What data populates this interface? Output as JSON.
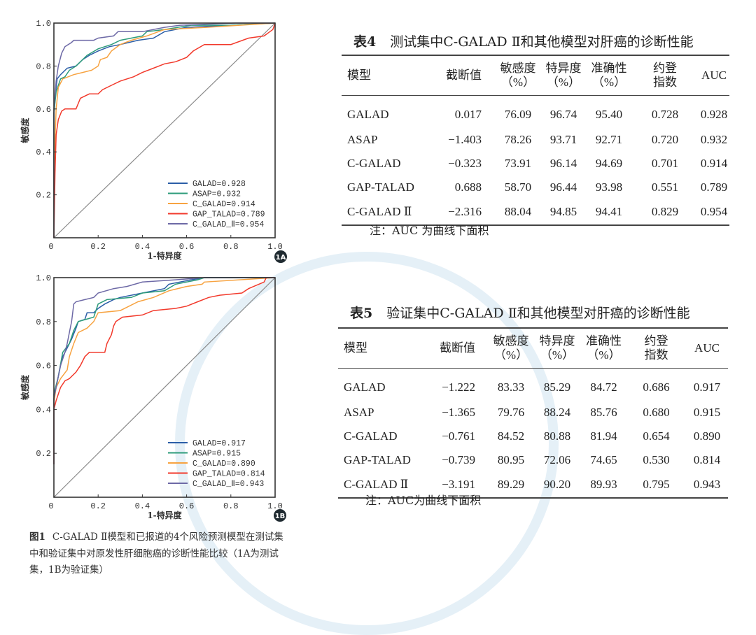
{
  "figure": {
    "label": "图1",
    "caption": "C-GALAD Ⅱ模型和已报道的4个风险预测模型在测试集中和验证集中对原发性肝细胞癌的诊断性能比较（1A为测试集，1B为验证集）"
  },
  "chart_data": [
    {
      "type": "line",
      "panel": "1A",
      "xlabel": "1-特异度",
      "ylabel": "敏感度",
      "xlim": [
        0,
        1
      ],
      "ylim": [
        0,
        1
      ],
      "xticks": [
        "0",
        "0.2",
        "0.4",
        "0.6",
        "0.8",
        "1.0"
      ],
      "yticks": [
        "0.2",
        "0.4",
        "0.6",
        "0.8",
        "1.0"
      ],
      "legend_position": "bottom-right",
      "reference_line": "diagonal",
      "series": [
        {
          "name": "GALAD=0.928",
          "color": "#2b5ea7",
          "points": [
            [
              0,
              0
            ],
            [
              0,
              0.58
            ],
            [
              0.01,
              0.7
            ],
            [
              0.015,
              0.74
            ],
            [
              0.03,
              0.76
            ],
            [
              0.06,
              0.79
            ],
            [
              0.1,
              0.8
            ],
            [
              0.13,
              0.83
            ],
            [
              0.16,
              0.85
            ],
            [
              0.2,
              0.87
            ],
            [
              0.25,
              0.89
            ],
            [
              0.3,
              0.9
            ],
            [
              0.38,
              0.92
            ],
            [
              0.45,
              0.93
            ],
            [
              0.5,
              0.96
            ],
            [
              0.6,
              0.98
            ],
            [
              0.8,
              0.99
            ],
            [
              1,
              1
            ]
          ]
        },
        {
          "name": "ASAP=0.932",
          "color": "#2e9c7b",
          "points": [
            [
              0,
              0
            ],
            [
              0,
              0.58
            ],
            [
              0.01,
              0.68
            ],
            [
              0.03,
              0.74
            ],
            [
              0.05,
              0.75
            ],
            [
              0.07,
              0.78
            ],
            [
              0.1,
              0.8
            ],
            [
              0.12,
              0.82
            ],
            [
              0.15,
              0.85
            ],
            [
              0.2,
              0.88
            ],
            [
              0.26,
              0.9
            ],
            [
              0.3,
              0.92
            ],
            [
              0.4,
              0.94
            ],
            [
              0.42,
              0.96
            ],
            [
              0.5,
              0.97
            ],
            [
              0.62,
              0.99
            ],
            [
              0.8,
              0.99
            ],
            [
              1,
              1
            ]
          ]
        },
        {
          "name": "C_GALAD=0.914",
          "color": "#f7a341",
          "points": [
            [
              0,
              0
            ],
            [
              0,
              0.3
            ],
            [
              0.01,
              0.6
            ],
            [
              0.02,
              0.7
            ],
            [
              0.04,
              0.74
            ],
            [
              0.09,
              0.76
            ],
            [
              0.13,
              0.77
            ],
            [
              0.17,
              0.78
            ],
            [
              0.2,
              0.8
            ],
            [
              0.21,
              0.83
            ],
            [
              0.24,
              0.84
            ],
            [
              0.26,
              0.87
            ],
            [
              0.3,
              0.9
            ],
            [
              0.35,
              0.92
            ],
            [
              0.42,
              0.94
            ],
            [
              0.5,
              0.97
            ],
            [
              0.69,
              0.98
            ],
            [
              1,
              1
            ]
          ]
        },
        {
          "name": "GAP_TALAD=0.789",
          "color": "#f23a2c",
          "points": [
            [
              0,
              0
            ],
            [
              0.005,
              0.3
            ],
            [
              0.01,
              0.48
            ],
            [
              0.02,
              0.55
            ],
            [
              0.035,
              0.59
            ],
            [
              0.05,
              0.6
            ],
            [
              0.1,
              0.6
            ],
            [
              0.12,
              0.65
            ],
            [
              0.16,
              0.67
            ],
            [
              0.2,
              0.67
            ],
            [
              0.22,
              0.69
            ],
            [
              0.26,
              0.71
            ],
            [
              0.3,
              0.73
            ],
            [
              0.36,
              0.75
            ],
            [
              0.4,
              0.77
            ],
            [
              0.45,
              0.79
            ],
            [
              0.5,
              0.81
            ],
            [
              0.55,
              0.82
            ],
            [
              0.6,
              0.84
            ],
            [
              0.63,
              0.87
            ],
            [
              0.68,
              0.9
            ],
            [
              0.8,
              0.9
            ],
            [
              0.88,
              0.93
            ],
            [
              0.95,
              0.94
            ],
            [
              0.99,
              0.97
            ],
            [
              1,
              1
            ]
          ]
        },
        {
          "name": "C_GALAD_Ⅱ=0.954",
          "color": "#6d69a6",
          "points": [
            [
              0,
              0
            ],
            [
              0,
              0.6
            ],
            [
              0.01,
              0.73
            ],
            [
              0.02,
              0.8
            ],
            [
              0.035,
              0.86
            ],
            [
              0.05,
              0.89
            ],
            [
              0.08,
              0.91
            ],
            [
              0.09,
              0.92
            ],
            [
              0.18,
              0.92
            ],
            [
              0.2,
              0.93
            ],
            [
              0.27,
              0.94
            ],
            [
              0.29,
              0.96
            ],
            [
              0.4,
              0.96
            ],
            [
              0.5,
              0.98
            ],
            [
              0.57,
              0.99
            ],
            [
              0.82,
              1
            ],
            [
              1,
              1
            ]
          ]
        }
      ]
    },
    {
      "type": "line",
      "panel": "1B",
      "xlabel": "1-特异度",
      "ylabel": "敏感度",
      "xlim": [
        0,
        1
      ],
      "ylim": [
        0,
        1
      ],
      "xticks": [
        "0",
        "0.2",
        "0.4",
        "0.6",
        "0.8",
        "1.0"
      ],
      "yticks": [
        "0.2",
        "0.4",
        "0.6",
        "0.8",
        "1.0"
      ],
      "legend_position": "bottom-right",
      "reference_line": "diagonal",
      "series": [
        {
          "name": "GALAD=0.917",
          "color": "#2b5ea7",
          "points": [
            [
              0,
              0.15
            ],
            [
              0,
              0.45
            ],
            [
              0.01,
              0.5
            ],
            [
              0.02,
              0.55
            ],
            [
              0.03,
              0.6
            ],
            [
              0.04,
              0.64
            ],
            [
              0.06,
              0.68
            ],
            [
              0.08,
              0.72
            ],
            [
              0.1,
              0.77
            ],
            [
              0.11,
              0.8
            ],
            [
              0.14,
              0.81
            ],
            [
              0.15,
              0.84
            ],
            [
              0.18,
              0.84
            ],
            [
              0.2,
              0.86
            ],
            [
              0.23,
              0.88
            ],
            [
              0.27,
              0.9
            ],
            [
              0.3,
              0.91
            ],
            [
              0.4,
              0.93
            ],
            [
              0.5,
              0.95
            ],
            [
              0.52,
              0.97
            ],
            [
              0.62,
              0.99
            ],
            [
              0.68,
              1
            ],
            [
              1,
              1
            ]
          ]
        },
        {
          "name": "ASAP=0.915",
          "color": "#2e9c7b",
          "points": [
            [
              0,
              0.15
            ],
            [
              0,
              0.47
            ],
            [
              0.02,
              0.55
            ],
            [
              0.04,
              0.66
            ],
            [
              0.07,
              0.7
            ],
            [
              0.09,
              0.76
            ],
            [
              0.11,
              0.8
            ],
            [
              0.18,
              0.82
            ],
            [
              0.2,
              0.88
            ],
            [
              0.24,
              0.9
            ],
            [
              0.35,
              0.91
            ],
            [
              0.4,
              0.93
            ],
            [
              0.5,
              0.94
            ],
            [
              0.55,
              0.97
            ],
            [
              0.65,
              0.99
            ],
            [
              0.68,
              1
            ],
            [
              1,
              1
            ]
          ]
        },
        {
          "name": "C_GALAD=0.890",
          "color": "#f7a341",
          "points": [
            [
              0,
              0.15
            ],
            [
              0,
              0.43
            ],
            [
              0.01,
              0.5
            ],
            [
              0.03,
              0.54
            ],
            [
              0.06,
              0.58
            ],
            [
              0.07,
              0.64
            ],
            [
              0.09,
              0.7
            ],
            [
              0.11,
              0.75
            ],
            [
              0.15,
              0.77
            ],
            [
              0.18,
              0.8
            ],
            [
              0.2,
              0.84
            ],
            [
              0.3,
              0.85
            ],
            [
              0.34,
              0.87
            ],
            [
              0.38,
              0.89
            ],
            [
              0.45,
              0.91
            ],
            [
              0.52,
              0.94
            ],
            [
              0.6,
              0.96
            ],
            [
              0.67,
              0.97
            ],
            [
              0.68,
              0.98
            ],
            [
              1,
              1
            ]
          ]
        },
        {
          "name": "GAP_TALAD=0.814",
          "color": "#f23a2c",
          "points": [
            [
              0,
              0.15
            ],
            [
              0,
              0.4
            ],
            [
              0.01,
              0.44
            ],
            [
              0.03,
              0.5
            ],
            [
              0.05,
              0.53
            ],
            [
              0.07,
              0.54
            ],
            [
              0.1,
              0.57
            ],
            [
              0.12,
              0.6
            ],
            [
              0.14,
              0.64
            ],
            [
              0.16,
              0.66
            ],
            [
              0.23,
              0.66
            ],
            [
              0.24,
              0.7
            ],
            [
              0.26,
              0.74
            ],
            [
              0.27,
              0.78
            ],
            [
              0.28,
              0.8
            ],
            [
              0.31,
              0.82
            ],
            [
              0.4,
              0.83
            ],
            [
              0.45,
              0.85
            ],
            [
              0.55,
              0.86
            ],
            [
              0.6,
              0.87
            ],
            [
              0.65,
              0.89
            ],
            [
              0.7,
              0.91
            ],
            [
              0.75,
              0.92
            ],
            [
              0.85,
              0.93
            ],
            [
              0.88,
              0.95
            ],
            [
              0.95,
              0.98
            ],
            [
              0.96,
              1
            ],
            [
              1,
              1
            ]
          ]
        },
        {
          "name": "C_GALAD_Ⅱ=0.943",
          "color": "#6d69a6",
          "points": [
            [
              0,
              0.15
            ],
            [
              0,
              0.45
            ],
            [
              0.02,
              0.55
            ],
            [
              0.03,
              0.6
            ],
            [
              0.05,
              0.66
            ],
            [
              0.06,
              0.7
            ],
            [
              0.07,
              0.75
            ],
            [
              0.08,
              0.8
            ],
            [
              0.09,
              0.88
            ],
            [
              0.1,
              0.89
            ],
            [
              0.14,
              0.9
            ],
            [
              0.18,
              0.91
            ],
            [
              0.2,
              0.93
            ],
            [
              0.27,
              0.95
            ],
            [
              0.33,
              0.96
            ],
            [
              0.4,
              0.98
            ],
            [
              0.55,
              0.99
            ],
            [
              0.68,
              1
            ],
            [
              1,
              1
            ]
          ]
        }
      ]
    }
  ],
  "tables": [
    {
      "label": "表4",
      "title": "测试集中C-GALAD Ⅱ和其他模型对肝癌的诊断性能",
      "headers": [
        [
          "模型"
        ],
        [
          "截断值"
        ],
        [
          "敏感度",
          "（%）"
        ],
        [
          "特异度",
          "（%）"
        ],
        [
          "准确性",
          "（%）"
        ],
        [
          "约登",
          "指数"
        ],
        [
          "AUC"
        ]
      ],
      "rows": [
        [
          "GALAD",
          "0.017",
          "76.09",
          "96.74",
          "95.40",
          "0.728",
          "0.928"
        ],
        [
          "ASAP",
          "−1.403",
          "78.26",
          "93.71",
          "92.71",
          "0.720",
          "0.932"
        ],
        [
          "C-GALAD",
          "−0.323",
          "73.91",
          "96.14",
          "94.69",
          "0.701",
          "0.914"
        ],
        [
          "GAP-TALAD",
          "0.688",
          "58.70",
          "96.44",
          "93.98",
          "0.551",
          "0.789"
        ],
        [
          "C-GALAD Ⅱ",
          "−2.316",
          "88.04",
          "94.85",
          "94.41",
          "0.829",
          "0.954"
        ]
      ],
      "note": "注：AUC 为曲线下面积"
    },
    {
      "label": "表5",
      "title": "验证集中C-GALAD Ⅱ和其他模型对肝癌的诊断性能",
      "headers": [
        [
          "模型"
        ],
        [
          "截断值"
        ],
        [
          "敏感度",
          "（%）"
        ],
        [
          "特异度",
          "（%）"
        ],
        [
          "准确性",
          "（%）"
        ],
        [
          "约登",
          "指数"
        ],
        [
          "AUC"
        ]
      ],
      "rows": [
        [
          "GALAD",
          "−1.222",
          "83.33",
          "85.29",
          "84.72",
          "0.686",
          "0.917"
        ],
        [
          "ASAP",
          "−1.365",
          "79.76",
          "88.24",
          "85.76",
          "0.680",
          "0.915"
        ],
        [
          "C-GALAD",
          "−0.761",
          "84.52",
          "80.88",
          "81.94",
          "0.654",
          "0.890"
        ],
        [
          "GAP-TALAD",
          "−0.739",
          "80.95",
          "72.06",
          "74.65",
          "0.530",
          "0.814"
        ],
        [
          "C-GALAD Ⅱ",
          "−3.191",
          "89.29",
          "90.20",
          "89.93",
          "0.795",
          "0.943"
        ]
      ],
      "note": "注：AUC为曲线下面积"
    }
  ]
}
